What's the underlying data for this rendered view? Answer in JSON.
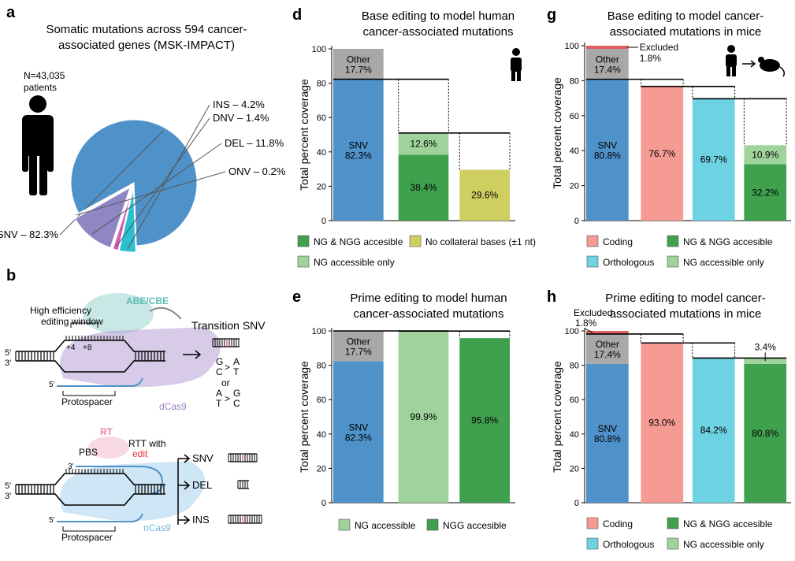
{
  "colors": {
    "snv": "#4f92c9",
    "other": "#a8a8a8",
    "ng_ngg": "#3fa14d",
    "ng_only": "#9fd39b",
    "collateral": "#cfcf61",
    "excluded": "#e15d62",
    "coding": "#f69b94",
    "orthologous": "#6dd2e1",
    "ins": "#2bbfd0",
    "dnv": "#d35fb8",
    "del": "#8f86c3",
    "onv": "#e8b773",
    "dcas9": "#b8a0d6",
    "ncas9": "#a6d2ec",
    "abe": "#9ad4cf",
    "rt": "#f3b9cb",
    "edit": "#e03030"
  },
  "panel_a": {
    "label": "a",
    "title_line1": "Somatic mutations across 594 cancer-",
    "title_line2": "associated genes (MSK-IMPACT)",
    "n_line1": "N=43,035",
    "n_line2": "patients",
    "person_icon": "person-icon"
  },
  "panel_b": {
    "label": "b",
    "abe_cbe": "ABE/CBE",
    "window_line1": "High efficiency",
    "window_line2": "editing window",
    "pos4": "+4",
    "pos8": "+8",
    "five_prime": "5'",
    "three_prime": "3'",
    "dcas9": "dCas9",
    "protospacer": "Protospacer",
    "transition": "Transition SNV",
    "t_top1": "G",
    "t_bot1": "C",
    "t_topr1": "A",
    "t_botr1": "T",
    "or": "or",
    "t_top2": "A",
    "t_bot2": "T",
    "t_topr2": "G",
    "t_botr2": "C",
    "gt": ">",
    "rt": "RT",
    "pbs": "PBS",
    "rtt_line1": "RTT with",
    "rtt_edit": "edit",
    "ncas9": "nCas9",
    "protospacer2": "Protospacer",
    "out_snv": "SNV",
    "out_del": "DEL",
    "out_ins": "INS"
  },
  "chart_data": [
    {
      "id": "a",
      "type": "pie",
      "title": "Somatic mutations across 594 cancer-associated genes (MSK-IMPACT)",
      "slices": [
        {
          "name": "SNV",
          "value": 82.3,
          "label": "SNV – 82.3%",
          "color": "#4f92c9"
        },
        {
          "name": "INS",
          "value": 4.2,
          "label": "INS – 4.2%",
          "color": "#2bbfd0"
        },
        {
          "name": "DNV",
          "value": 1.4,
          "label": "DNV – 1.4%",
          "color": "#d35fb8"
        },
        {
          "name": "DEL",
          "value": 11.8,
          "label": "DEL – 11.8%",
          "color": "#8f86c3"
        },
        {
          "name": "ONV",
          "value": 0.2,
          "label": "ONV – 0.2%",
          "color": "#e8b773"
        }
      ]
    },
    {
      "id": "d",
      "type": "bar",
      "label": "d",
      "title_line1": "Base editing to model human",
      "title_line2": "cancer-associated mutations",
      "ylabel": "Total percent coverage",
      "ylim": [
        0,
        100
      ],
      "yticks": [
        "0",
        "20",
        "40",
        "60",
        "80",
        "100"
      ],
      "bars": [
        {
          "segments": [
            {
              "key": "snv",
              "value": 82.3,
              "label": "SNV\n82.3%"
            },
            {
              "key": "other",
              "value": 17.7,
              "label": "Other\n17.7%"
            }
          ]
        },
        {
          "segments": [
            {
              "key": "ng_ngg",
              "value": 38.4,
              "label": "38.4%"
            },
            {
              "key": "ng_only",
              "value": 12.6,
              "label": "12.6%"
            }
          ]
        },
        {
          "segments": [
            {
              "key": "collateral",
              "value": 29.6,
              "label": "29.6%"
            }
          ]
        }
      ],
      "step_levels": [
        82.3,
        51.0
      ],
      "legend": [
        {
          "key": "ng_ngg",
          "text": "NG & NGG accesible"
        },
        {
          "key": "collateral",
          "text": "No collateral bases (±1 nt)"
        },
        {
          "key": "ng_only",
          "text": "NG accessible only"
        }
      ],
      "icons": [
        "person-icon"
      ]
    },
    {
      "id": "e",
      "type": "bar",
      "label": "e",
      "title_line1": "Prime editing to model human",
      "title_line2": "cancer-associated mutations",
      "ylabel": "Total percent coverage",
      "ylim": [
        0,
        100
      ],
      "yticks": [
        "0",
        "20",
        "40",
        "60",
        "80",
        "100"
      ],
      "bars": [
        {
          "segments": [
            {
              "key": "snv",
              "value": 82.3,
              "label": "SNV\n82.3%"
            },
            {
              "key": "other",
              "value": 17.7,
              "label": "Other\n17.7%"
            }
          ]
        },
        {
          "segments": [
            {
              "key": "ng_only",
              "value": 99.9,
              "label": "99.9%"
            }
          ]
        },
        {
          "segments": [
            {
              "key": "ng_ngg",
              "value": 95.8,
              "label": "95.8%"
            }
          ]
        }
      ],
      "step_levels": [
        100,
        99.9
      ],
      "legend": [
        {
          "key": "ng_only",
          "text": "NG accessible"
        },
        {
          "key": "ng_ngg",
          "text": "NGG accesible"
        }
      ]
    },
    {
      "id": "g",
      "type": "bar",
      "label": "g",
      "title_line1": "Base editing to model cancer-",
      "title_line2": "associated mutations in mice",
      "ylabel": "Total percent coverage",
      "ylim": [
        0,
        100
      ],
      "yticks": [
        "0",
        "20",
        "40",
        "60",
        "80",
        "100"
      ],
      "bars": [
        {
          "segments": [
            {
              "key": "snv",
              "value": 80.8,
              "label": "SNV\n80.8%"
            },
            {
              "key": "other",
              "value": 17.4,
              "label": "Other\n17.4%"
            },
            {
              "key": "excluded",
              "value": 1.8,
              "label": ""
            }
          ]
        },
        {
          "segments": [
            {
              "key": "coding",
              "value": 76.7,
              "label": "76.7%"
            }
          ]
        },
        {
          "segments": [
            {
              "key": "orthologous",
              "value": 69.7,
              "label": "69.7%"
            }
          ]
        },
        {
          "segments": [
            {
              "key": "ng_ngg",
              "value": 32.2,
              "label": "32.2%"
            },
            {
              "key": "ng_only",
              "value": 10.9,
              "label": "10.9%"
            }
          ]
        }
      ],
      "step_levels": [
        80.8,
        76.7,
        69.7
      ],
      "callout": {
        "text_line1": "Excluded",
        "text_line2": "1.8%"
      },
      "legend": [
        {
          "key": "coding",
          "text": "Coding"
        },
        {
          "key": "ng_ngg",
          "text": "NG & NGG accesible"
        },
        {
          "key": "orthologous",
          "text": "Orthologous"
        },
        {
          "key": "ng_only",
          "text": "NG accessible only"
        }
      ],
      "icons": [
        "person-icon",
        "arrow-icon",
        "mouse-icon"
      ]
    },
    {
      "id": "h",
      "type": "bar",
      "label": "h",
      "title_line1": "Prime editing to model cancer-",
      "title_line2": "associated mutations in mice",
      "ylabel": "Total percent coverage",
      "ylim": [
        0,
        100
      ],
      "yticks": [
        "0",
        "20",
        "40",
        "60",
        "80",
        "100"
      ],
      "bars": [
        {
          "segments": [
            {
              "key": "snv",
              "value": 80.8,
              "label": "SNV\n80.8%"
            },
            {
              "key": "other",
              "value": 17.4,
              "label": "Other\n17.4%"
            },
            {
              "key": "excluded",
              "value": 1.8,
              "label": ""
            }
          ]
        },
        {
          "segments": [
            {
              "key": "coding",
              "value": 93.0,
              "label": "93.0%"
            }
          ]
        },
        {
          "segments": [
            {
              "key": "orthologous",
              "value": 84.2,
              "label": "84.2%"
            }
          ]
        },
        {
          "segments": [
            {
              "key": "ng_ngg",
              "value": 80.8,
              "label": "80.8%"
            },
            {
              "key": "ng_only",
              "value": 3.4,
              "label": ""
            }
          ]
        }
      ],
      "step_levels": [
        98.2,
        93.0,
        84.2
      ],
      "callout": {
        "text_line1": "Excluded",
        "text_line2": "1.8%"
      },
      "top_note": "3.4%",
      "legend": [
        {
          "key": "coding",
          "text": "Coding"
        },
        {
          "key": "ng_ngg",
          "text": "NG & NGG accesible"
        },
        {
          "key": "orthologous",
          "text": "Orthologous"
        },
        {
          "key": "ng_only",
          "text": "NG accessible only"
        }
      ]
    }
  ]
}
